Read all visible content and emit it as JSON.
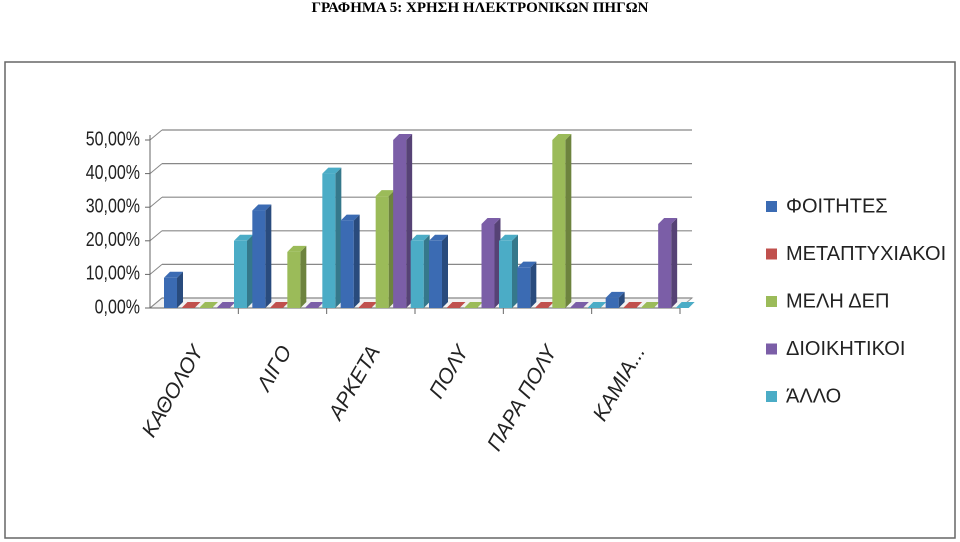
{
  "chart_data": {
    "type": "bar",
    "title": "ΓΡΑΦΗΜΑ 5: ΧΡΗΣΗ ΗΛΕΚΤΡΟΝΙΚΩΝ ΠΗΓΩΝ",
    "categories": [
      "ΚΑΘΟΛΟΥ",
      "ΛΙΓΟ",
      "ΑΡΚΕΤΑ",
      "ΠΟΛΥ",
      "ΠΑΡΑ ΠΟΛΥ",
      "ΚΑΜΙΑ..."
    ],
    "series": [
      {
        "name": "ΦΟΙΤΗΤΕΣ",
        "color": "#3b6bb3",
        "values": [
          9,
          29,
          26,
          20,
          12,
          3
        ]
      },
      {
        "name": "ΜΕΤΑΠΤΥΧΙΑΚΟΙ",
        "color": "#c0504d",
        "values": [
          0,
          0,
          0,
          0,
          0,
          0
        ]
      },
      {
        "name": "ΜΕΛΗ ΔΕΠ",
        "color": "#9bbb59",
        "values": [
          0,
          16.7,
          33.3,
          0,
          50,
          0
        ]
      },
      {
        "name": "ΔΙΟΙΚΗΤΙΚΟΙ",
        "color": "#7b5ea7",
        "values": [
          0,
          0,
          50,
          25,
          0,
          25
        ]
      },
      {
        "name": "ΆΛΛΟ",
        "color": "#4bacc6",
        "values": [
          20,
          40,
          20,
          20,
          0,
          0
        ]
      }
    ],
    "ylim": [
      0,
      50
    ],
    "yticks": [
      {
        "value": 0,
        "label": "0,00%"
      },
      {
        "value": 10,
        "label": "10,00%"
      },
      {
        "value": 20,
        "label": "20,00%"
      },
      {
        "value": 30,
        "label": "30,00%"
      },
      {
        "value": 40,
        "label": "40,00%"
      },
      {
        "value": 50,
        "label": "50,00%"
      }
    ],
    "grid": true,
    "legend": "right"
  }
}
